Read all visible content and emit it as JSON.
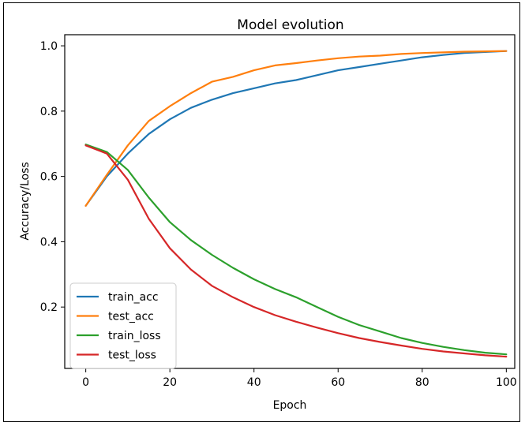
{
  "chart_data": {
    "type": "line",
    "title": "Model evolution",
    "xlabel": "Epoch",
    "ylabel": "Accuracy/Loss",
    "xlim": [
      -5,
      102
    ],
    "ylim": [
      0.012,
      1.034
    ],
    "xticks": [
      0,
      20,
      40,
      60,
      80,
      100
    ],
    "yticks": [
      0.2,
      0.4,
      0.6,
      0.8,
      1.0
    ],
    "xtick_labels": [
      "0",
      "20",
      "40",
      "60",
      "80",
      "100"
    ],
    "ytick_labels": [
      "0.2",
      "0.4",
      "0.6",
      "0.8",
      "1.0"
    ],
    "grid": false,
    "legend_position": "lower-left",
    "x": [
      0,
      5,
      10,
      15,
      20,
      25,
      30,
      35,
      40,
      45,
      50,
      55,
      60,
      65,
      70,
      75,
      80,
      85,
      90,
      95,
      100
    ],
    "series": [
      {
        "name": "train_acc",
        "color": "#1f77b4",
        "values": [
          0.51,
          0.6,
          0.67,
          0.73,
          0.775,
          0.81,
          0.835,
          0.855,
          0.87,
          0.885,
          0.895,
          0.91,
          0.925,
          0.935,
          0.945,
          0.955,
          0.965,
          0.972,
          0.978,
          0.981,
          0.984
        ]
      },
      {
        "name": "test_acc",
        "color": "#ff7f0e",
        "values": [
          0.51,
          0.605,
          0.695,
          0.77,
          0.815,
          0.855,
          0.89,
          0.905,
          0.925,
          0.94,
          0.947,
          0.955,
          0.962,
          0.967,
          0.97,
          0.975,
          0.978,
          0.98,
          0.982,
          0.983,
          0.984
        ]
      },
      {
        "name": "train_loss",
        "color": "#2ca02c",
        "values": [
          0.698,
          0.675,
          0.62,
          0.535,
          0.46,
          0.405,
          0.36,
          0.32,
          0.285,
          0.255,
          0.23,
          0.2,
          0.17,
          0.145,
          0.125,
          0.105,
          0.09,
          0.078,
          0.068,
          0.06,
          0.055
        ]
      },
      {
        "name": "test_loss",
        "color": "#d62728",
        "values": [
          0.695,
          0.67,
          0.59,
          0.47,
          0.38,
          0.315,
          0.265,
          0.23,
          0.2,
          0.175,
          0.155,
          0.137,
          0.12,
          0.105,
          0.093,
          0.082,
          0.072,
          0.064,
          0.058,
          0.052,
          0.048
        ]
      }
    ]
  }
}
